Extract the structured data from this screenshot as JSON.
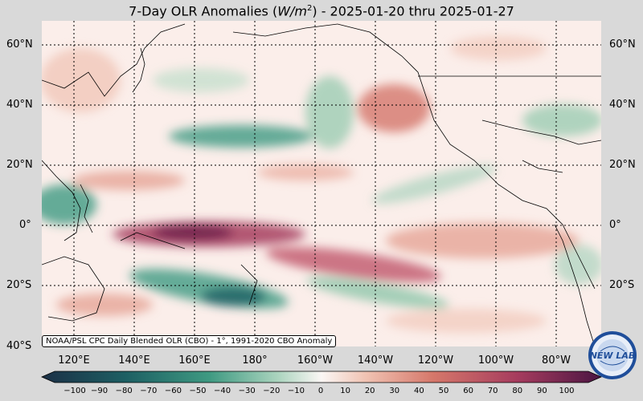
{
  "title_prefix": "7-Day OLR Anomalies (",
  "title_unit_base": "W/m",
  "title_unit_exp": "2",
  "title_suffix": ") - 2025-01-20 thru 2025-01-27",
  "credit": "NOAA/PSL CPC Daily Blended OLR (CBO) - 1°, 1991-2020 CBO Anomaly",
  "lat_labels": [
    "60°N",
    "40°N",
    "20°N",
    "0°",
    "20°S",
    "40°S"
  ],
  "lon_labels": [
    "120°E",
    "140°E",
    "160°E",
    "180°",
    "160°W",
    "140°W",
    "120°W",
    "100°W",
    "80°W"
  ],
  "colorbar_ticks": [
    "−100",
    "−90",
    "−80",
    "−70",
    "−60",
    "−50",
    "−40",
    "−30",
    "−20",
    "−10",
    "0",
    "10",
    "20",
    "30",
    "40",
    "50",
    "60",
    "70",
    "80",
    "90",
    "100"
  ],
  "logo_text": "NEW LAB",
  "colors": {
    "negative_dark": "#1d3b4a",
    "negative": "#2b8a7a",
    "neutral": "#fbf3ef",
    "positive": "#d9786a",
    "positive_dark": "#6a1e4a"
  }
}
